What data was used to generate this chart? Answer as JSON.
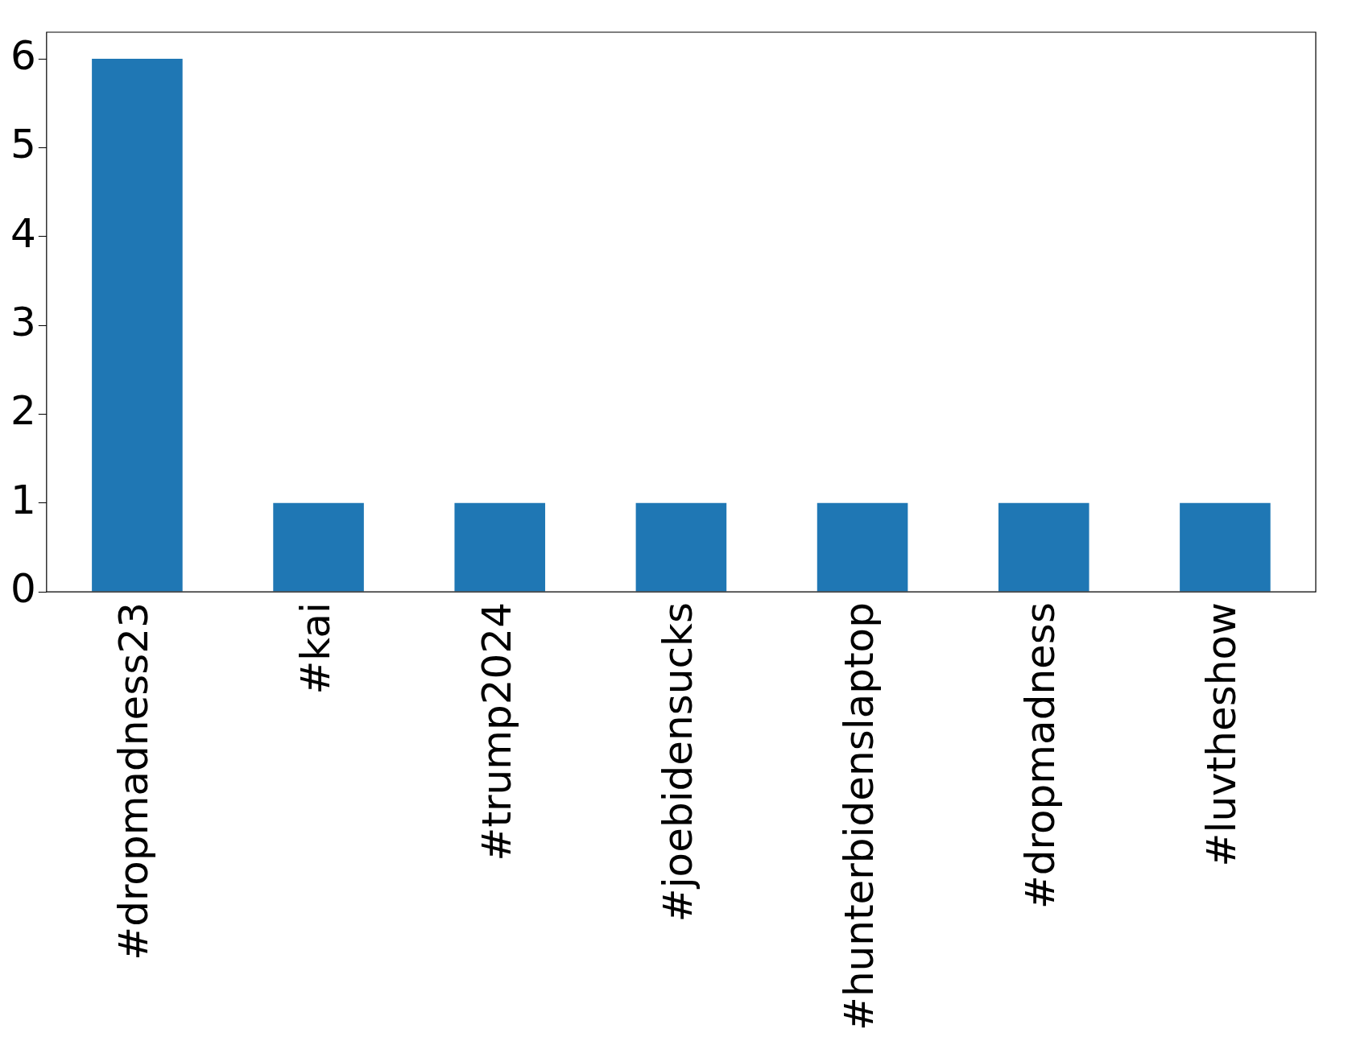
{
  "chart_data": {
    "type": "bar",
    "categories": [
      "#dropmadness23",
      "#kai",
      "#trump2024",
      "#joebidensucks",
      "#hunterbidenslaptop",
      "#dropmadness",
      "#luvtheshow"
    ],
    "values": [
      6,
      1,
      1,
      1,
      1,
      1,
      1
    ],
    "color": "#1f77b4",
    "ylim": [
      0,
      6.3
    ],
    "yticks": [
      0,
      1,
      2,
      3,
      4,
      5,
      6
    ],
    "grid": false,
    "legend": false
  }
}
